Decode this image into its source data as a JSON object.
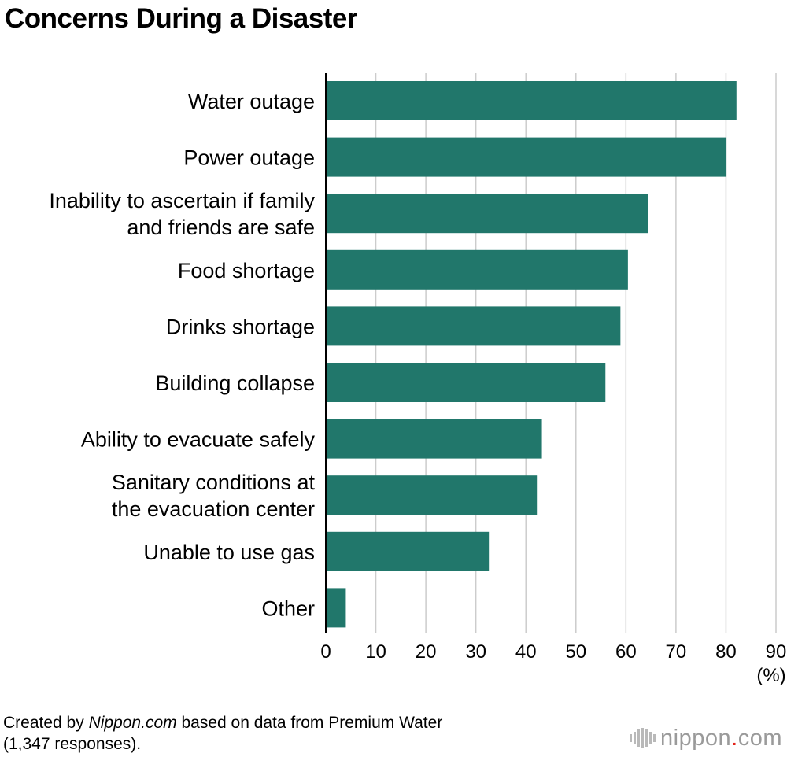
{
  "title": "Concerns During a Disaster",
  "chart_data": {
    "type": "bar",
    "orientation": "horizontal",
    "title": "Concerns During a Disaster",
    "categories": [
      [
        "Water outage"
      ],
      [
        "Power outage"
      ],
      [
        "Inability to ascertain if family",
        "and friends are safe"
      ],
      [
        "Food shortage"
      ],
      [
        "Drinks shortage"
      ],
      [
        "Building collapse"
      ],
      [
        "Ability to evacuate safely"
      ],
      [
        "Sanitary conditions at",
        "the evacuation center"
      ],
      [
        "Unable to use gas"
      ],
      [
        "Other"
      ]
    ],
    "values": [
      82.1,
      80.1,
      64.5,
      60.4,
      58.9,
      55.9,
      43.2,
      42.2,
      32.6,
      4.0
    ],
    "xlim": [
      0,
      90
    ],
    "xticks": [
      0,
      10,
      20,
      30,
      40,
      50,
      60,
      70,
      80,
      90
    ],
    "xunit": "(%)",
    "grid": true,
    "bar_color": "#21776b",
    "grid_color": "#cccccc"
  },
  "footer": {
    "prefix": "Created by ",
    "site": "Nippon.com",
    "suffix": " based on data from Premium Water",
    "line2": "(1,347 responses)."
  },
  "logo": {
    "text": "nippon",
    "dot": ".",
    "tld": "com",
    "icon": "nippon-logo-bars-icon",
    "dot_color": "#e2231a"
  }
}
